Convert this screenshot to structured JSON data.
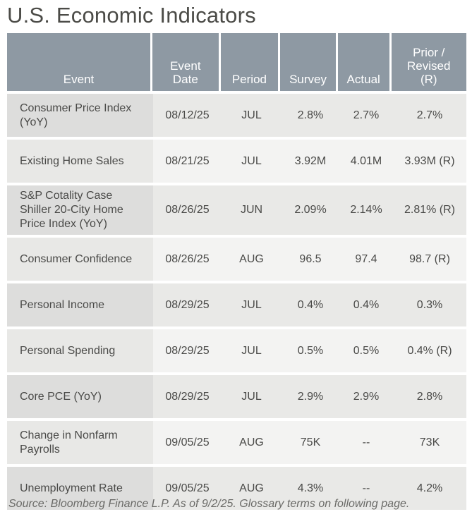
{
  "title": "U.S. Economic Indicators",
  "table": {
    "headers": [
      "Event",
      "Event Date",
      "Period",
      "Survey",
      "Actual",
      "Prior / Revised (R)"
    ],
    "header_lines": [
      [
        "Event"
      ],
      [
        "Event",
        "Date"
      ],
      [
        "Period"
      ],
      [
        "Survey"
      ],
      [
        "Actual"
      ],
      [
        "Prior /",
        "Revised",
        "(R)"
      ]
    ],
    "rows": [
      {
        "event": "Consumer Price Index (YoY)",
        "date": "08/12/25",
        "period": "JUL",
        "survey": "2.8%",
        "actual": "2.7%",
        "prior": "2.7%"
      },
      {
        "event": "Existing Home Sales",
        "date": "08/21/25",
        "period": "JUL",
        "survey": "3.92M",
        "actual": "4.01M",
        "prior": "3.93M (R)"
      },
      {
        "event": "S&P Cotality Case Shiller 20-City Home Price Index (YoY)",
        "date": "08/26/25",
        "period": "JUN",
        "survey": "2.09%",
        "actual": "2.14%",
        "prior": "2.81% (R)"
      },
      {
        "event": "Consumer Confidence",
        "date": "08/26/25",
        "period": "AUG",
        "survey": "96.5",
        "actual": "97.4",
        "prior": "98.7 (R)"
      },
      {
        "event": "Personal Income",
        "date": "08/29/25",
        "period": "JUL",
        "survey": "0.4%",
        "actual": "0.4%",
        "prior": "0.3%"
      },
      {
        "event": "Personal Spending",
        "date": "08/29/25",
        "period": "JUL",
        "survey": "0.5%",
        "actual": "0.5%",
        "prior": "0.4% (R)"
      },
      {
        "event": "Core PCE (YoY)",
        "date": "08/29/25",
        "period": "JUL",
        "survey": "2.9%",
        "actual": "2.9%",
        "prior": "2.8%"
      },
      {
        "event": "Change in Nonfarm Payrolls",
        "date": "09/05/25",
        "period": "AUG",
        "survey": "75K",
        "actual": "--",
        "prior": "73K"
      },
      {
        "event": "Unemployment Rate",
        "date": "09/05/25",
        "period": "AUG",
        "survey": "4.3%",
        "actual": "--",
        "prior": "4.2%"
      }
    ]
  },
  "source": "Source: Bloomberg Finance L.P. As of  9/2/25. Glossary terms on following page.",
  "colors": {
    "header_bg": "#8e99a3",
    "title": "#4b4b47"
  }
}
